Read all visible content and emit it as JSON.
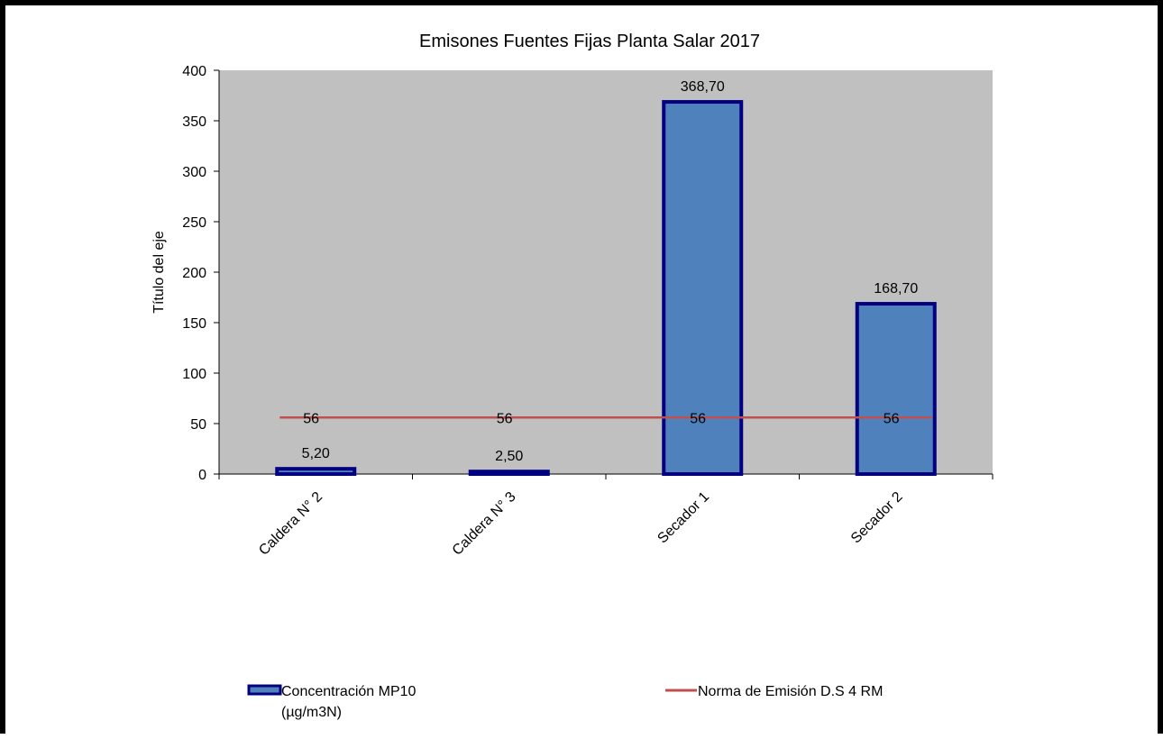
{
  "chart_data": {
    "type": "bar",
    "title": "Emisones Fuentes Fijas Planta Salar 2017",
    "ylabel": "Título del eje",
    "xlabel": "",
    "ylim": [
      0,
      400
    ],
    "yticks": [
      0,
      50,
      100,
      150,
      200,
      250,
      300,
      350,
      400
    ],
    "categories": [
      "Caldera N° 2",
      "Caldera N° 3",
      "Secador 1",
      "Secador 2"
    ],
    "grid": false,
    "legend_position": "bottom",
    "series": [
      {
        "name": "Concentración MP10 (µg/m3N)",
        "kind": "bar",
        "values": [
          5.2,
          2.5,
          368.7,
          168.7
        ],
        "data_labels": [
          "5,20",
          "2,50",
          "368,70",
          "168,70"
        ],
        "color": "#4f81bd",
        "border_color": "#000080"
      },
      {
        "name": "Norma de Emisión D.S 4 RM",
        "kind": "line",
        "values": [
          56,
          56,
          56,
          56
        ],
        "data_labels": [
          "56",
          "56",
          "56",
          "56"
        ],
        "color": "#c0504d"
      }
    ],
    "legend": {
      "bar_label_line1": "Concentración MP10",
      "bar_label_line2": "(µg/m3N)",
      "line_label": "Norma de Emisión D.S 4 RM"
    },
    "plot_background": "#c0c0c0"
  }
}
